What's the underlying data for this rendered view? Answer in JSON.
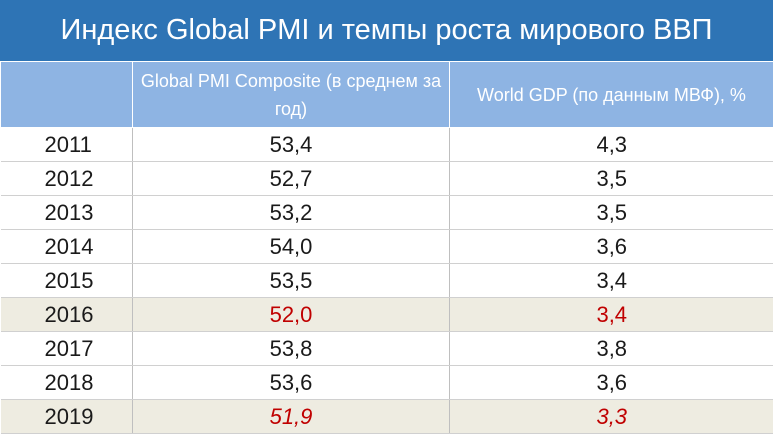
{
  "title": "Индекс Global PMI и темпы роста мирового ВВП",
  "colors": {
    "title_bg": "#2e74b5",
    "header_bg": "#8eb4e3",
    "highlight_row_bg": "#eeece1",
    "highlight_text": "#c00000"
  },
  "chart_data": {
    "type": "table",
    "title": "Индекс Global PMI и темпы роста мирового ВВП",
    "columns": [
      "",
      "Global PMI Composite (в среднем за год)",
      "World GDP (по данным МВФ), %"
    ],
    "rows": [
      {
        "year": "2011",
        "pmi": "53,4",
        "gdp": "4,3"
      },
      {
        "year": "2012",
        "pmi": "52,7",
        "gdp": "3,5"
      },
      {
        "year": "2013",
        "pmi": "53,2",
        "gdp": "3,5"
      },
      {
        "year": "2014",
        "pmi": "54,0",
        "gdp": "3,6"
      },
      {
        "year": "2015",
        "pmi": "53,5",
        "gdp": "3,4"
      },
      {
        "year": "2016",
        "pmi": "52,0",
        "gdp": "3,4",
        "highlight": true,
        "red": true
      },
      {
        "year": "2017",
        "pmi": "53,8",
        "gdp": "3,8"
      },
      {
        "year": "2018",
        "pmi": "53,6",
        "gdp": "3,6"
      },
      {
        "year": "2019",
        "pmi": "51,9",
        "gdp": "3,3",
        "highlight": true,
        "red": true,
        "italic": true
      }
    ]
  }
}
